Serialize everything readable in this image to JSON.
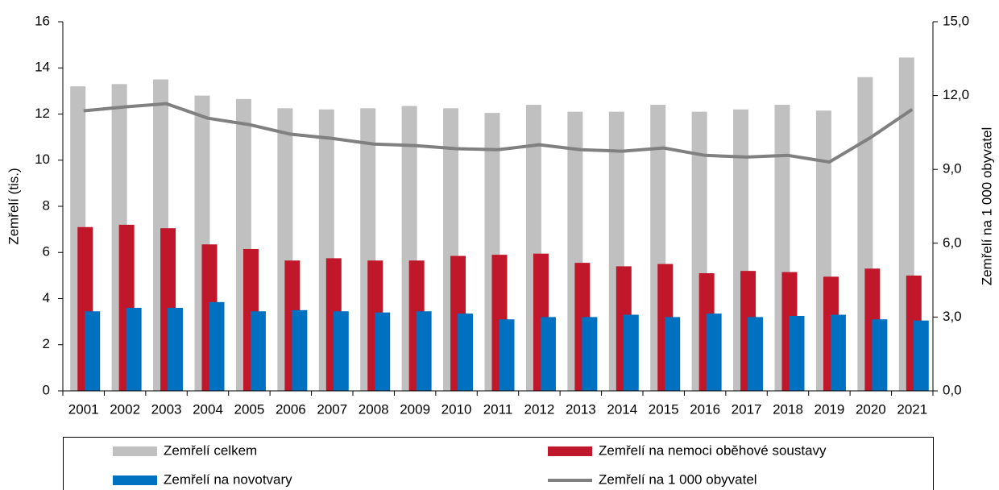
{
  "chart_data": {
    "type": "bar",
    "categories": [
      "2001",
      "2002",
      "2003",
      "2004",
      "2005",
      "2006",
      "2007",
      "2008",
      "2009",
      "2010",
      "2011",
      "2012",
      "2013",
      "2014",
      "2015",
      "2016",
      "2017",
      "2018",
      "2019",
      "2020",
      "2021"
    ],
    "y_label": "Zemřelí (tis.)",
    "y2_label": "Zemřelí na 1 000 obyvatel",
    "ylim": [
      0,
      16
    ],
    "yticks": [
      0,
      2,
      4,
      6,
      8,
      10,
      12,
      14,
      16
    ],
    "y2lim": [
      0,
      15
    ],
    "y2ticks": [
      {
        "value": 0,
        "label": "0,0"
      },
      {
        "value": 3,
        "label": "3,0"
      },
      {
        "value": 6,
        "label": "6,0"
      },
      {
        "value": 9,
        "label": "9,0"
      },
      {
        "value": 12,
        "label": "12,0"
      },
      {
        "value": 15,
        "label": "15,0"
      }
    ],
    "legend": "bottom",
    "series": [
      {
        "name": "Zemřelí celkem",
        "type": "bar",
        "color": "#c0c0c0",
        "values": [
          13.2,
          13.3,
          13.5,
          12.8,
          12.65,
          12.25,
          12.2,
          12.25,
          12.35,
          12.25,
          12.05,
          12.4,
          12.1,
          12.1,
          12.4,
          12.1,
          12.2,
          12.4,
          12.15,
          13.6,
          14.45
        ]
      },
      {
        "name": "Zemřelí na nemoci oběhové soustavy",
        "type": "bar",
        "color": "#c0182a",
        "values": [
          7.1,
          7.2,
          7.05,
          6.35,
          6.15,
          5.65,
          5.75,
          5.65,
          5.65,
          5.85,
          5.9,
          5.95,
          5.55,
          5.4,
          5.5,
          5.1,
          5.2,
          5.15,
          4.95,
          5.3,
          5.0
        ]
      },
      {
        "name": "Zemřelí na novotvary",
        "type": "bar",
        "color": "#0070c0",
        "values": [
          3.45,
          3.6,
          3.6,
          3.85,
          3.45,
          3.5,
          3.45,
          3.4,
          3.45,
          3.35,
          3.1,
          3.2,
          3.2,
          3.3,
          3.2,
          3.35,
          3.2,
          3.25,
          3.3,
          3.1,
          3.05
        ]
      },
      {
        "name": "Zemřelí na 1 000 obyvatel",
        "type": "line",
        "axis": "y2",
        "color": "#808080",
        "values": [
          11.38,
          11.54,
          11.67,
          11.08,
          10.82,
          10.43,
          10.26,
          10.03,
          9.97,
          9.84,
          9.8,
          10.0,
          9.8,
          9.74,
          9.87,
          9.57,
          9.5,
          9.57,
          9.3,
          10.3,
          11.44
        ]
      }
    ]
  }
}
